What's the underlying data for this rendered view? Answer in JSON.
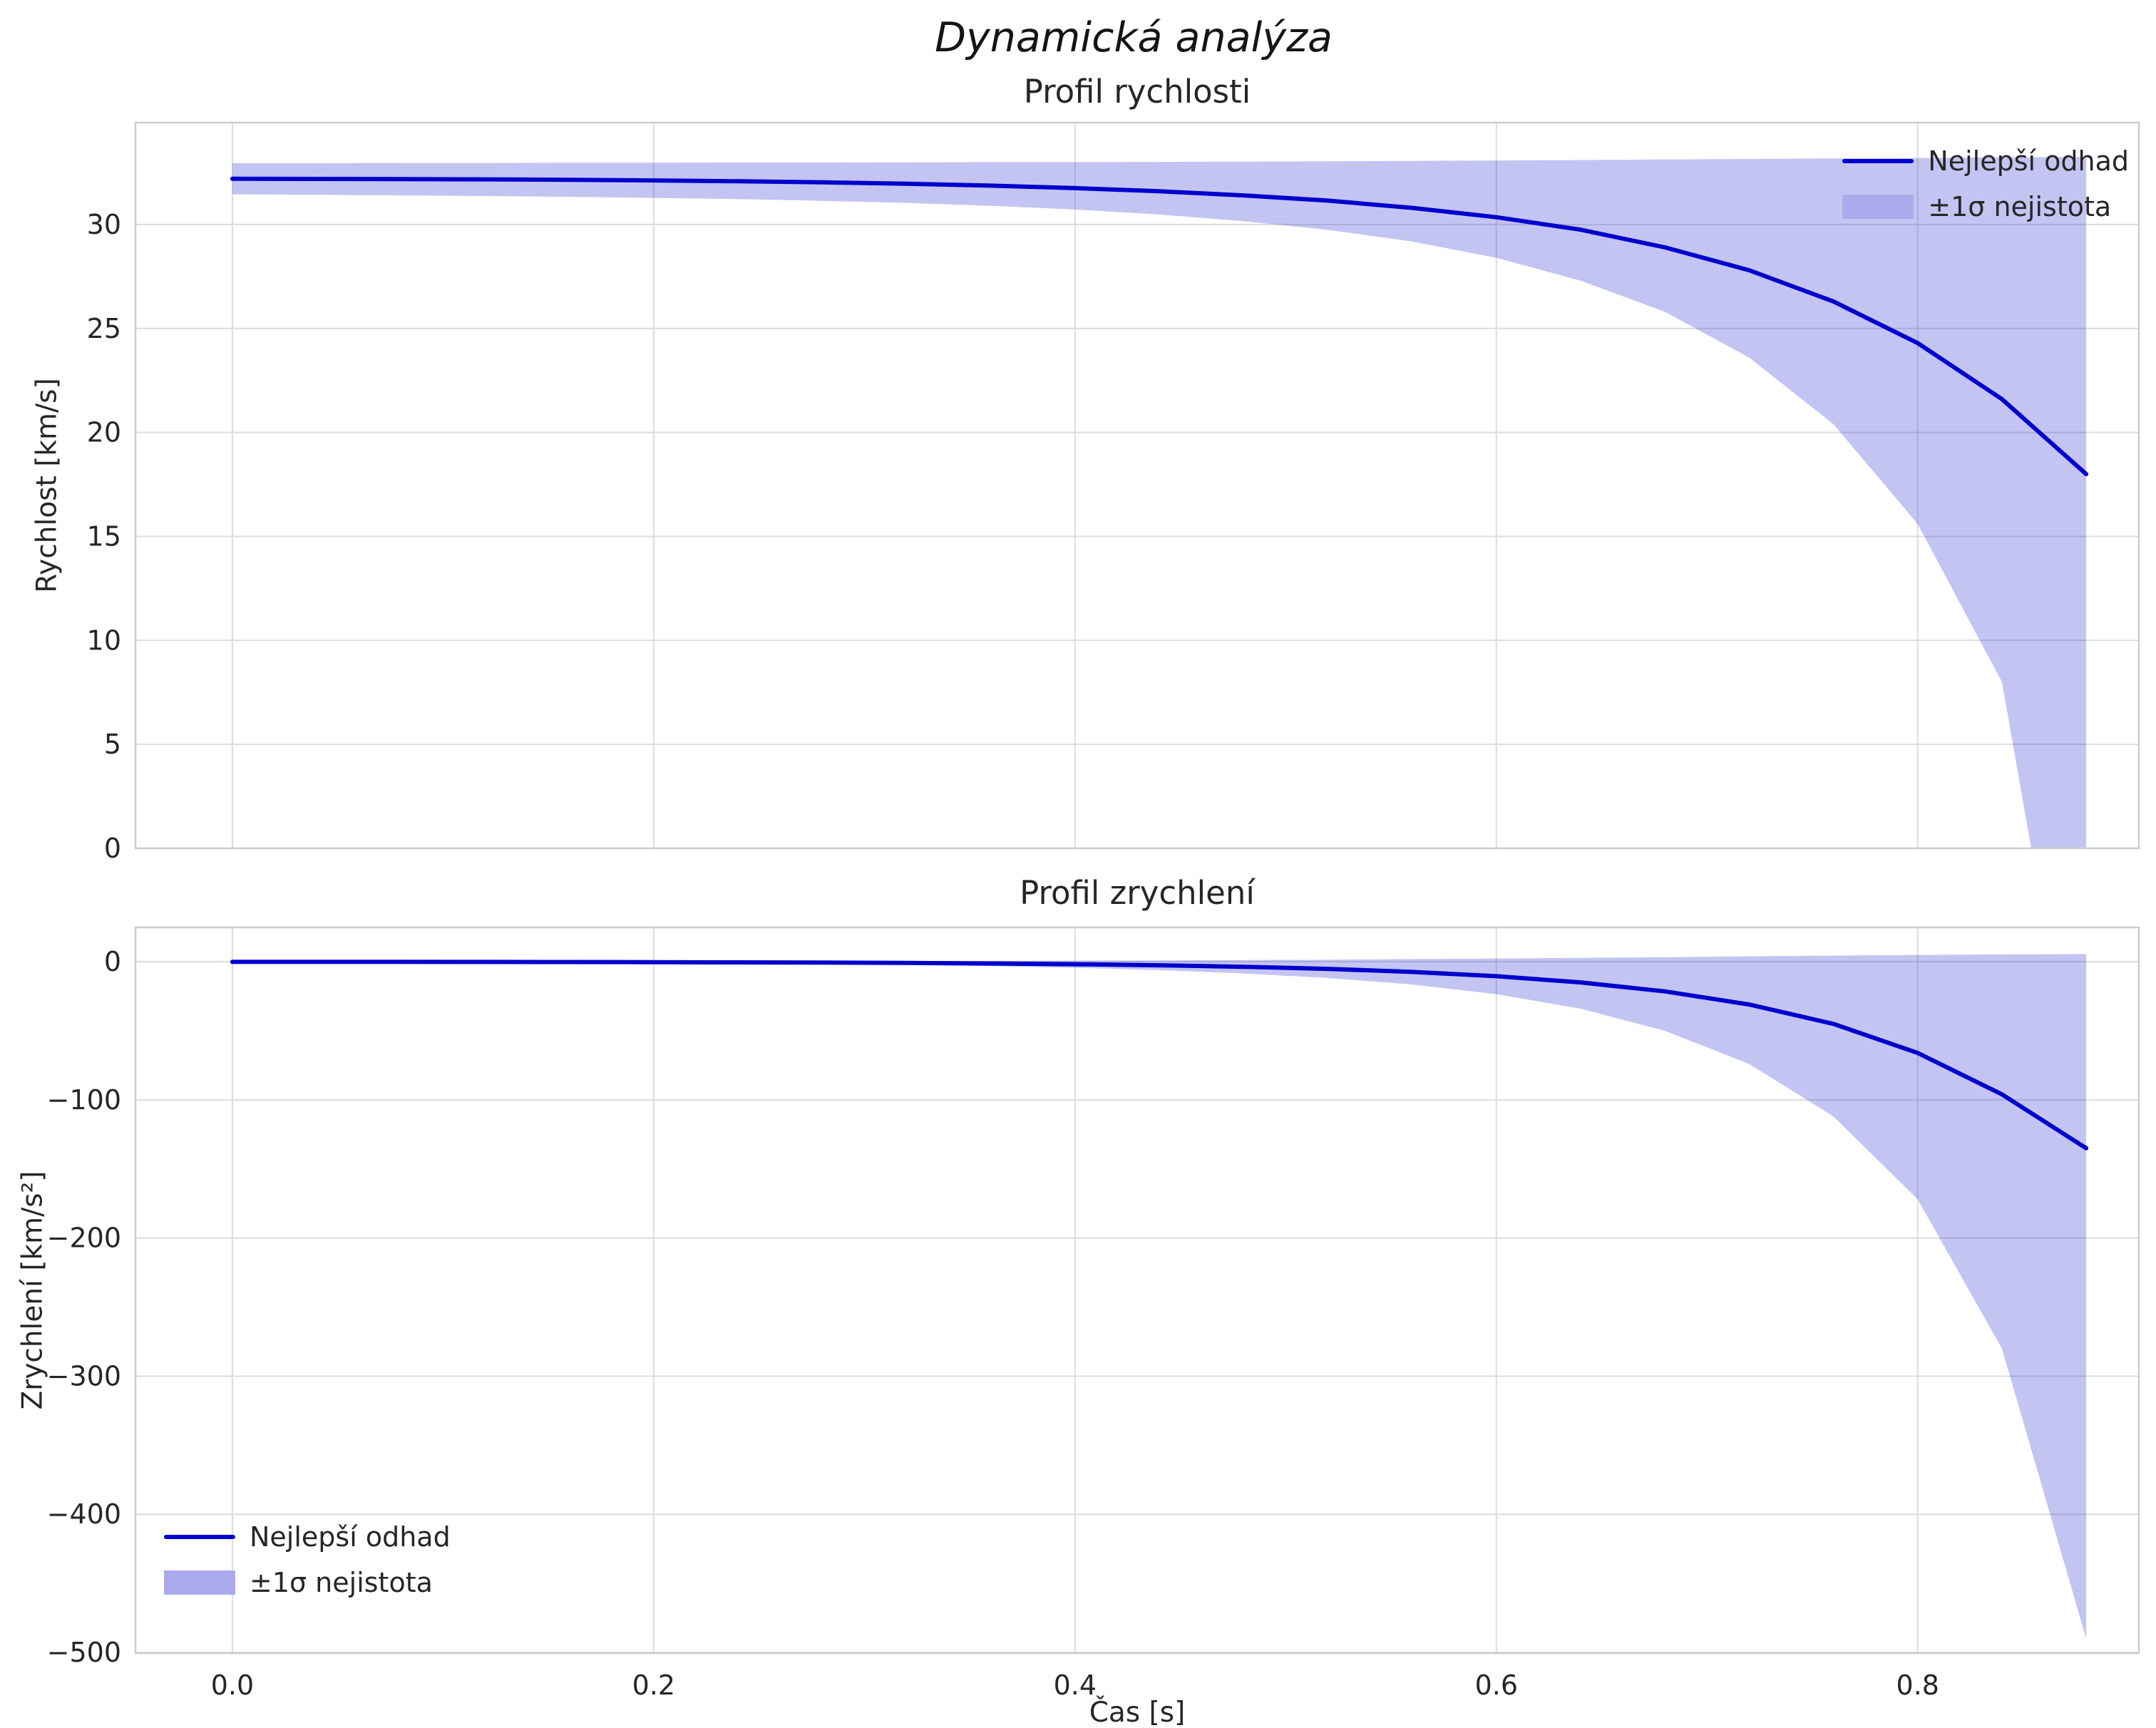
{
  "figure": {
    "suptitle": "Dynamická analýza",
    "background": "#ffffff"
  },
  "style": {
    "line_color": "#0000cd",
    "band_fill": "#3c3cd7",
    "band_fill_opacity": 0.3,
    "band_legend_fill": "#aaaaec",
    "grid_color": "#dcdcdc",
    "spine_color": "#cccccc",
    "text_color": "#262626"
  },
  "chart_data": [
    {
      "type": "line",
      "title": "Profil rychlosti",
      "ylabel": "Rychlost [km/s]",
      "xlabel": "",
      "grid": true,
      "legend_position": "upper right",
      "xlim": [
        -0.046,
        0.905
      ],
      "ylim": [
        0,
        34.9
      ],
      "xticks": [
        0,
        0.2,
        0.4,
        0.6,
        0.8
      ],
      "xtick_labels": [
        "0.0",
        "0.2",
        "0.4",
        "0.6",
        "0.8"
      ],
      "yticks": [
        0,
        5,
        10,
        15,
        20,
        25,
        30
      ],
      "ytick_labels": [
        "0",
        "5",
        "10",
        "15",
        "20",
        "25",
        "30"
      ],
      "x": [
        0.0,
        0.04,
        0.08,
        0.12,
        0.16,
        0.2,
        0.24,
        0.28,
        0.32,
        0.36,
        0.4,
        0.44,
        0.48,
        0.52,
        0.56,
        0.6,
        0.64,
        0.68,
        0.72,
        0.76,
        0.8,
        0.84,
        0.88
      ],
      "series": [
        {
          "name": "Nejlepší odhad",
          "values": [
            32.2,
            32.19,
            32.18,
            32.17,
            32.15,
            32.12,
            32.08,
            32.03,
            31.96,
            31.87,
            31.75,
            31.6,
            31.4,
            31.15,
            30.8,
            30.35,
            29.75,
            28.9,
            27.8,
            26.3,
            24.3,
            21.6,
            18.0
          ]
        }
      ],
      "band": {
        "name": "±1σ nejistota",
        "upper": [
          32.95,
          32.95,
          32.96,
          32.96,
          32.97,
          32.97,
          32.98,
          32.98,
          32.99,
          33.0,
          33.0,
          33.01,
          33.02,
          33.04,
          33.06,
          33.08,
          33.1,
          33.13,
          33.15,
          33.18,
          33.2,
          33.23,
          33.25
        ],
        "lower": [
          31.45,
          31.43,
          31.4,
          31.37,
          31.33,
          31.28,
          31.22,
          31.14,
          31.04,
          30.9,
          30.72,
          30.48,
          30.16,
          29.74,
          29.18,
          28.4,
          27.3,
          25.8,
          23.6,
          20.4,
          15.6,
          8.0,
          -15.0
        ]
      }
    },
    {
      "type": "line",
      "title": "Profil zrychlení",
      "ylabel": "Zrychlení [km/s²]",
      "xlabel": "Čas [s]",
      "grid": true,
      "legend_position": "lower left",
      "xlim": [
        -0.046,
        0.905
      ],
      "ylim": [
        -500.5,
        24.8
      ],
      "xticks": [
        0,
        0.2,
        0.4,
        0.6,
        0.8
      ],
      "xtick_labels": [
        "0.0",
        "0.2",
        "0.4",
        "0.6",
        "0.8"
      ],
      "yticks": [
        0,
        -100,
        -200,
        -300,
        -400,
        -500
      ],
      "ytick_labels": [
        "0",
        "−100",
        "−200",
        "−300",
        "−400",
        "−500"
      ],
      "x": [
        0.0,
        0.04,
        0.08,
        0.12,
        0.16,
        0.2,
        0.24,
        0.28,
        0.32,
        0.36,
        0.4,
        0.44,
        0.48,
        0.52,
        0.56,
        0.6,
        0.64,
        0.68,
        0.72,
        0.76,
        0.8,
        0.84,
        0.88
      ],
      "series": [
        {
          "name": "Nejlepší odhad",
          "values": [
            -0.05,
            -0.07,
            -0.1,
            -0.15,
            -0.22,
            -0.32,
            -0.46,
            -0.65,
            -0.92,
            -1.3,
            -1.85,
            -2.6,
            -3.7,
            -5.2,
            -7.4,
            -10.5,
            -15.0,
            -21.5,
            -31.0,
            -45.0,
            -66.0,
            -96.0,
            -135.0
          ]
        }
      ],
      "band": {
        "name": "±1σ nejistota",
        "upper": [
          0.1,
          0.12,
          0.15,
          0.18,
          0.22,
          0.27,
          0.33,
          0.4,
          0.5,
          0.62,
          0.77,
          0.95,
          1.2,
          1.5,
          1.9,
          2.3,
          2.8,
          3.3,
          3.9,
          4.4,
          4.9,
          5.3,
          5.5
        ],
        "lower": [
          -0.2,
          -0.26,
          -0.35,
          -0.48,
          -0.66,
          -0.91,
          -1.25,
          -1.7,
          -2.3,
          -3.2,
          -4.4,
          -6.1,
          -8.5,
          -11.8,
          -16.5,
          -23.5,
          -34.0,
          -50.0,
          -74.0,
          -112.0,
          -172.0,
          -280.0,
          -490.0
        ]
      }
    }
  ]
}
